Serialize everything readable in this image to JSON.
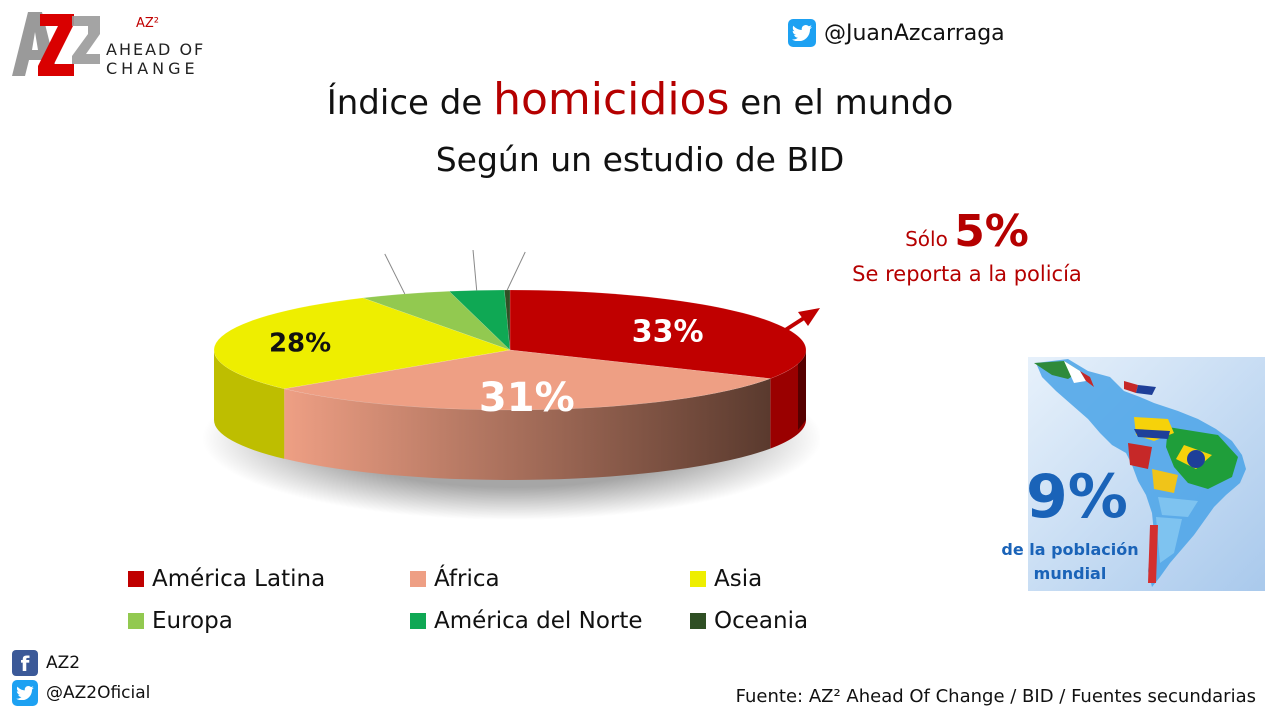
{
  "logo": {
    "mark": "AZ2",
    "small": "AZ²",
    "line1": "AHEAD OF",
    "line2": "CHANGE"
  },
  "twitter_top": {
    "handle": "@JuanAzcarraga",
    "icon": "twitter-icon"
  },
  "title": {
    "prefix": "Índice de ",
    "highlight": "homicidios",
    "suffix": " en el mundo",
    "subtitle": "Según un estudio de BID"
  },
  "callout": {
    "solo": "Sólo ",
    "pct": "5%",
    "text": "Se reporta a la policía"
  },
  "map": {
    "pct": "9%",
    "caption_line1": "de la población",
    "caption_line2": "mundial"
  },
  "social": {
    "facebook": "AZ2",
    "twitter": "@AZ2Oficial"
  },
  "source": "Fuente: AZ² Ahead Of Change / BID / Fuentes secundarias",
  "colors": {
    "accent": "#b50000",
    "blue": "#1a63b8"
  },
  "chart_data": {
    "type": "pie",
    "style": "3d",
    "series": [
      {
        "name": "América Latina",
        "value": 33,
        "label": "33%",
        "color": "#c00000"
      },
      {
        "name": "África",
        "value": 31,
        "label": "31%",
        "color": "#ee9f84"
      },
      {
        "name": "Asia",
        "value": 28,
        "label": "28%",
        "color": "#eeee00"
      },
      {
        "name": "Europa",
        "value": 5,
        "label": "5%",
        "color": "#92c950"
      },
      {
        "name": "América del Norte",
        "value": 3,
        "label": "3%",
        "color": "#0fa854"
      },
      {
        "name": "Oceania",
        "value": 0.3,
        "label": "0.3%",
        "color": "#2f4f24"
      }
    ],
    "legend_position": "bottom"
  }
}
